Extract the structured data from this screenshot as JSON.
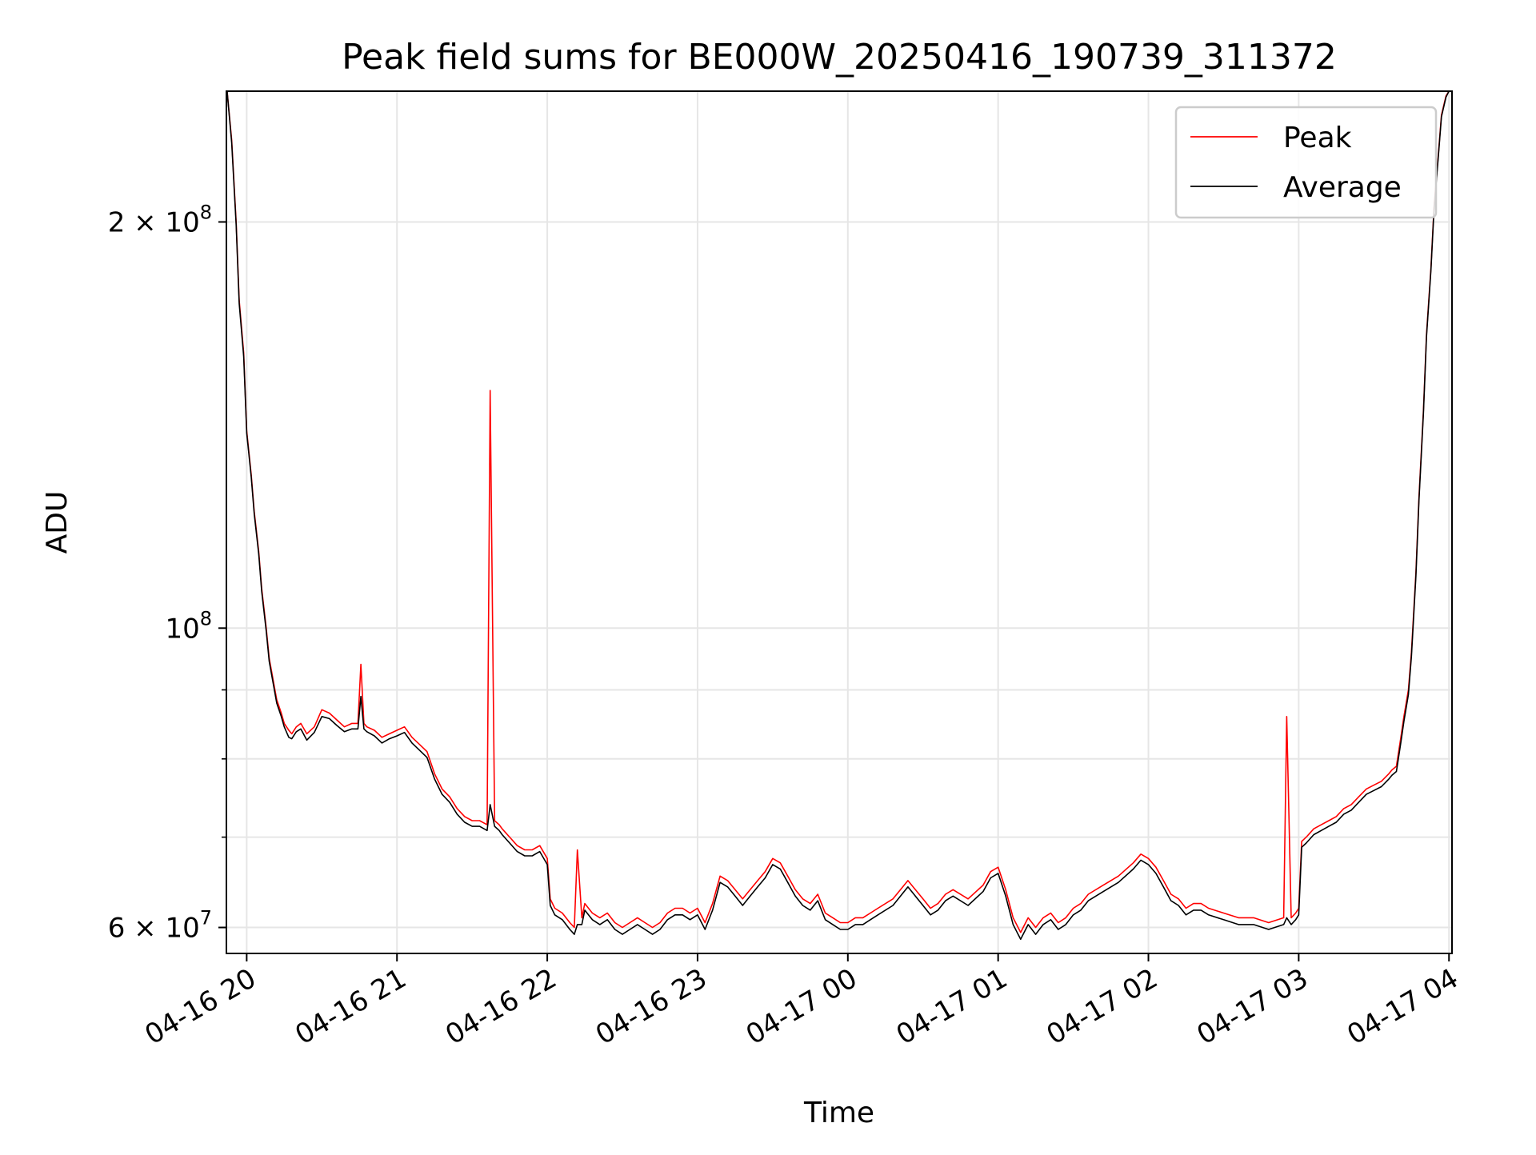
{
  "chart_data": {
    "type": "line",
    "title": "Peak field sums for BE000W_20250416_190739_311372",
    "xlabel": "Time",
    "ylabel": "ADU",
    "yscale": "log",
    "grid": true,
    "legend_position": "top-right",
    "x_unit": "hours since 2025-04-16 19:00",
    "xlim": [
      19.865,
      28.02
    ],
    "ylim": [
      57400000,
      250000000
    ],
    "x_ticks": [
      {
        "value": 20,
        "label": "04-16 20"
      },
      {
        "value": 21,
        "label": "04-16 21"
      },
      {
        "value": 22,
        "label": "04-16 22"
      },
      {
        "value": 23,
        "label": "04-16 23"
      },
      {
        "value": 24,
        "label": "04-17 00"
      },
      {
        "value": 25,
        "label": "04-17 01"
      },
      {
        "value": 26,
        "label": "04-17 02"
      },
      {
        "value": 27,
        "label": "04-17 03"
      },
      {
        "value": 28,
        "label": "04-17 04"
      }
    ],
    "y_major_ticks": [
      {
        "value": 100000000,
        "base": "10",
        "exp": "8"
      },
      {
        "value": 200000000,
        "mant": "2",
        "base": "10",
        "exp": "8"
      },
      {
        "value": 60000000,
        "mant": "6",
        "base": "10",
        "exp": "7"
      }
    ],
    "y_minor_ticks": [
      60000000,
      70000000,
      80000000,
      90000000,
      200000000
    ],
    "colors": {
      "peak": "#ff0000",
      "average": "#000000",
      "grid": "#e6e6e6"
    },
    "series": [
      {
        "name": "Peak",
        "color": "#ff0000",
        "x": [
          19.87,
          19.9,
          19.93,
          19.95,
          19.98,
          20.0,
          20.03,
          20.05,
          20.08,
          20.1,
          20.13,
          20.15,
          20.18,
          20.2,
          20.23,
          20.25,
          20.28,
          20.3,
          20.33,
          20.36,
          20.4,
          20.45,
          20.5,
          20.55,
          20.6,
          20.65,
          20.7,
          20.74,
          20.76,
          20.78,
          20.8,
          20.85,
          20.9,
          20.95,
          21.0,
          21.05,
          21.1,
          21.15,
          21.2,
          21.25,
          21.3,
          21.35,
          21.4,
          21.45,
          21.5,
          21.55,
          21.6,
          21.62,
          21.65,
          21.68,
          21.7,
          21.75,
          21.8,
          21.85,
          21.9,
          21.95,
          22.0,
          22.02,
          22.05,
          22.1,
          22.15,
          22.18,
          22.2,
          22.23,
          22.25,
          22.3,
          22.35,
          22.4,
          22.45,
          22.5,
          22.55,
          22.6,
          22.65,
          22.7,
          22.75,
          22.8,
          22.85,
          22.9,
          22.95,
          23.0,
          23.05,
          23.1,
          23.15,
          23.2,
          23.25,
          23.3,
          23.35,
          23.4,
          23.45,
          23.5,
          23.55,
          23.6,
          23.65,
          23.7,
          23.75,
          23.8,
          23.85,
          23.9,
          23.95,
          24.0,
          24.05,
          24.1,
          24.15,
          24.2,
          24.3,
          24.4,
          24.5,
          24.55,
          24.6,
          24.65,
          24.7,
          24.8,
          24.9,
          24.95,
          25.0,
          25.05,
          25.1,
          25.15,
          25.2,
          25.25,
          25.3,
          25.35,
          25.4,
          25.45,
          25.5,
          25.55,
          25.6,
          25.7,
          25.8,
          25.9,
          25.95,
          26.0,
          26.05,
          26.1,
          26.15,
          26.2,
          26.25,
          26.3,
          26.35,
          26.4,
          26.5,
          26.6,
          26.7,
          26.8,
          26.9,
          26.92,
          26.95,
          26.98,
          27.0,
          27.02,
          27.05,
          27.1,
          27.15,
          27.2,
          27.25,
          27.3,
          27.35,
          27.4,
          27.45,
          27.5,
          27.55,
          27.6,
          27.62,
          27.65,
          27.68,
          27.7,
          27.73,
          27.75,
          27.78,
          27.8,
          27.83,
          27.85,
          27.88,
          27.9,
          27.93,
          27.95,
          27.98,
          28.0
        ],
        "values": [
          250000000,
          230000000,
          200000000,
          175000000,
          160000000,
          140000000,
          130000000,
          122000000,
          114000000,
          107000000,
          100000000,
          95000000,
          91000000,
          88500000,
          86500000,
          85000000,
          84000000,
          83500000,
          84500000,
          85000000,
          83500000,
          84500000,
          87000000,
          86500000,
          85500000,
          84500000,
          85000000,
          85000000,
          94000000,
          85000000,
          84500000,
          84000000,
          83000000,
          83500000,
          84000000,
          84500000,
          83000000,
          82000000,
          81000000,
          78000000,
          76000000,
          75000000,
          73500000,
          72500000,
          72000000,
          72000000,
          71500000,
          150000000,
          72000000,
          71500000,
          71000000,
          70000000,
          69000000,
          68500000,
          68500000,
          69000000,
          67500000,
          63000000,
          62000000,
          61500000,
          60500000,
          60000000,
          68500000,
          61000000,
          62500000,
          61500000,
          61000000,
          61500000,
          60500000,
          60000000,
          60500000,
          61000000,
          60500000,
          60000000,
          60500000,
          61500000,
          62000000,
          62000000,
          61500000,
          62000000,
          60500000,
          62500000,
          65500000,
          65000000,
          64000000,
          63000000,
          64000000,
          65000000,
          66000000,
          67500000,
          67000000,
          65500000,
          64000000,
          63000000,
          62500000,
          63500000,
          61500000,
          61000000,
          60500000,
          60500000,
          61000000,
          61000000,
          61500000,
          62000000,
          63000000,
          65000000,
          63000000,
          62000000,
          62500000,
          63500000,
          64000000,
          63000000,
          64500000,
          66000000,
          66500000,
          64000000,
          61000000,
          59500000,
          61000000,
          60000000,
          61000000,
          61500000,
          60500000,
          61000000,
          62000000,
          62500000,
          63500000,
          64500000,
          65500000,
          67000000,
          68000000,
          67500000,
          66500000,
          65000000,
          63500000,
          63000000,
          62000000,
          62500000,
          62500000,
          62000000,
          61500000,
          61000000,
          61000000,
          60500000,
          61000000,
          86000000,
          61000000,
          61500000,
          62000000,
          69500000,
          70000000,
          71000000,
          71500000,
          72000000,
          72500000,
          73500000,
          74000000,
          75000000,
          76000000,
          76500000,
          77000000,
          78000000,
          78500000,
          79000000,
          83000000,
          86000000,
          90000000,
          96000000,
          110000000,
          125000000,
          145000000,
          165000000,
          185000000,
          205000000,
          225000000,
          240000000,
          248000000,
          250000000
        ]
      },
      {
        "name": "Average",
        "color": "#000000",
        "x": [
          19.87,
          19.9,
          19.93,
          19.95,
          19.98,
          20.0,
          20.03,
          20.05,
          20.08,
          20.1,
          20.13,
          20.15,
          20.18,
          20.2,
          20.23,
          20.25,
          20.28,
          20.3,
          20.33,
          20.36,
          20.4,
          20.45,
          20.5,
          20.55,
          20.6,
          20.65,
          20.7,
          20.74,
          20.76,
          20.78,
          20.8,
          20.85,
          20.9,
          20.95,
          21.0,
          21.05,
          21.1,
          21.15,
          21.2,
          21.25,
          21.3,
          21.35,
          21.4,
          21.45,
          21.5,
          21.55,
          21.6,
          21.62,
          21.65,
          21.68,
          21.7,
          21.75,
          21.8,
          21.85,
          21.9,
          21.95,
          22.0,
          22.02,
          22.05,
          22.1,
          22.15,
          22.18,
          22.2,
          22.23,
          22.25,
          22.3,
          22.35,
          22.4,
          22.45,
          22.5,
          22.55,
          22.6,
          22.65,
          22.7,
          22.75,
          22.8,
          22.85,
          22.9,
          22.95,
          23.0,
          23.05,
          23.1,
          23.15,
          23.2,
          23.25,
          23.3,
          23.35,
          23.4,
          23.45,
          23.5,
          23.55,
          23.6,
          23.65,
          23.7,
          23.75,
          23.8,
          23.85,
          23.9,
          23.95,
          24.0,
          24.05,
          24.1,
          24.15,
          24.2,
          24.3,
          24.4,
          24.5,
          24.55,
          24.6,
          24.65,
          24.7,
          24.8,
          24.9,
          24.95,
          25.0,
          25.05,
          25.1,
          25.15,
          25.2,
          25.25,
          25.3,
          25.35,
          25.4,
          25.45,
          25.5,
          25.55,
          25.6,
          25.7,
          25.8,
          25.9,
          25.95,
          26.0,
          26.05,
          26.1,
          26.15,
          26.2,
          26.25,
          26.3,
          26.35,
          26.4,
          26.5,
          26.6,
          26.7,
          26.8,
          26.9,
          26.92,
          26.95,
          26.98,
          27.0,
          27.02,
          27.05,
          27.1,
          27.15,
          27.2,
          27.25,
          27.3,
          27.35,
          27.4,
          27.45,
          27.5,
          27.55,
          27.6,
          27.62,
          27.65,
          27.68,
          27.7,
          27.73,
          27.75,
          27.78,
          27.8,
          27.83,
          27.85,
          27.88,
          27.9,
          27.93,
          27.95,
          27.98,
          28.0
        ],
        "values": [
          250000000,
          229000000,
          199000000,
          174000000,
          159000000,
          139500000,
          129500000,
          121500000,
          113500000,
          106500000,
          99500000,
          94500000,
          90500000,
          88000000,
          86000000,
          84500000,
          83000000,
          82800000,
          83800000,
          84200000,
          82600000,
          83700000,
          86000000,
          85700000,
          84700000,
          83800000,
          84200000,
          84200000,
          89000000,
          84200000,
          83800000,
          83200000,
          82200000,
          82800000,
          83200000,
          83700000,
          82200000,
          81200000,
          80200000,
          77300000,
          75300000,
          74300000,
          72800000,
          71800000,
          71300000,
          71300000,
          70800000,
          74000000,
          71300000,
          70800000,
          70300000,
          69300000,
          68300000,
          67800000,
          67800000,
          68300000,
          66800000,
          62300000,
          61300000,
          60800000,
          59800000,
          59300000,
          60300000,
          60300000,
          61800000,
          60800000,
          60300000,
          60800000,
          59800000,
          59300000,
          59800000,
          60300000,
          59800000,
          59300000,
          59800000,
          60800000,
          61300000,
          61300000,
          60800000,
          61300000,
          59800000,
          61800000,
          64800000,
          64300000,
          63300000,
          62300000,
          63300000,
          64300000,
          65300000,
          66800000,
          66300000,
          64800000,
          63300000,
          62300000,
          61800000,
          62800000,
          60800000,
          60300000,
          59800000,
          59800000,
          60300000,
          60300000,
          60800000,
          61300000,
          62300000,
          64300000,
          62300000,
          61300000,
          61800000,
          62800000,
          63300000,
          62300000,
          63800000,
          65300000,
          65800000,
          63300000,
          60300000,
          58800000,
          60300000,
          59300000,
          60300000,
          60800000,
          59800000,
          60300000,
          61300000,
          61800000,
          62800000,
          63800000,
          64800000,
          66300000,
          67300000,
          66800000,
          65800000,
          64300000,
          62800000,
          62300000,
          61300000,
          61800000,
          61800000,
          61300000,
          60800000,
          60300000,
          60300000,
          59800000,
          60300000,
          61000000,
          60300000,
          60800000,
          61300000,
          68800000,
          69300000,
          70300000,
          70800000,
          71300000,
          71800000,
          72800000,
          73300000,
          74300000,
          75300000,
          75800000,
          76300000,
          77300000,
          77800000,
          78300000,
          82300000,
          85300000,
          89300000,
          95300000,
          109300000,
          124300000,
          144300000,
          164300000,
          184300000,
          204300000,
          224300000,
          239300000,
          247500000,
          250000000
        ]
      }
    ]
  }
}
